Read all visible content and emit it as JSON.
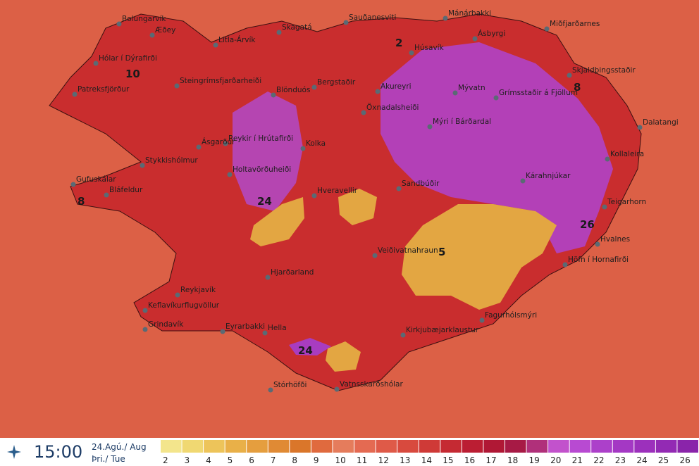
{
  "map": {
    "places": [
      "Bolungarvík",
      "Æðey",
      "Litla-Árvík",
      "Skagatá",
      "Sauðanesviti",
      "Mánárbakki",
      "Miðfjarðarnes",
      "Hólar í Dýrafirði",
      "Patreksfjörður",
      "Steingrímsfjarðarheiði",
      "Blönduós",
      "Bergstaðir",
      "Akureyri",
      "Mývatn",
      "Grímsstaðir á Fjöllum",
      "Skjaldþingsstaðir",
      "Húsavík",
      "Ásbyrgi",
      "Öxnadalsheiði",
      "Mýri í Bárðardal",
      "Dalatangi",
      "Reykir í Hrútafirði",
      "Kolka",
      "Ásgarður",
      "Stykkishólmur",
      "Kollaleira",
      "Holtavörðuheiði",
      "Kárahnjúkar",
      "Gufuskálar",
      "Bláfeldur",
      "Hveravellir",
      "Sandbúðir",
      "Teigarhorn",
      "Hvalnes",
      "Veiðivatnahraun",
      "Höfn í Hornafirði",
      "Hjarðarland",
      "Reykjavík",
      "Keflavíkurflugvöllur",
      "Grindavík",
      "Eyrarbakki",
      "Hella",
      "Fagurhólsmýri",
      "Kirkjubæjarklaustur",
      "Stórhöfði",
      "Vatnsskarðshólar"
    ],
    "values": [
      10,
      2,
      8,
      8,
      24,
      5,
      26,
      24
    ],
    "time": "15:00",
    "date": "24.Agú./ Aug",
    "day": "Þri./ Tue",
    "legend": [
      {
        "value": 2,
        "color": "#f3e58c"
      },
      {
        "value": 3,
        "color": "#f0d872"
      },
      {
        "value": 4,
        "color": "#edc45a"
      },
      {
        "value": 5,
        "color": "#e9b048"
      },
      {
        "value": 6,
        "color": "#e59e3e"
      },
      {
        "value": 7,
        "color": "#e08a34"
      },
      {
        "value": 8,
        "color": "#da762a"
      },
      {
        "value": 9,
        "color": "#e06a3e"
      },
      {
        "value": 10,
        "color": "#e57c5c"
      },
      {
        "value": 11,
        "color": "#e46a52"
      },
      {
        "value": 12,
        "color": "#df5a48"
      },
      {
        "value": 13,
        "color": "#d84a3e"
      },
      {
        "value": 14,
        "color": "#cf3a37"
      },
      {
        "value": 15,
        "color": "#c52a33"
      },
      {
        "value": 16,
        "color": "#bb1e33"
      },
      {
        "value": 17,
        "color": "#b01835"
      },
      {
        "value": 18,
        "color": "#a71a45"
      },
      {
        "value": 19,
        "color": "#b0307a"
      },
      {
        "value": 20,
        "color": "#c252cc"
      },
      {
        "value": 21,
        "color": "#b84ad2"
      },
      {
        "value": 22,
        "color": "#ac40ca"
      },
      {
        "value": 23,
        "color": "#a438c4"
      },
      {
        "value": 24,
        "color": "#9c30bc"
      },
      {
        "value": 25,
        "color": "#932ab4"
      },
      {
        "value": 26,
        "color": "#8a24aa"
      }
    ]
  }
}
